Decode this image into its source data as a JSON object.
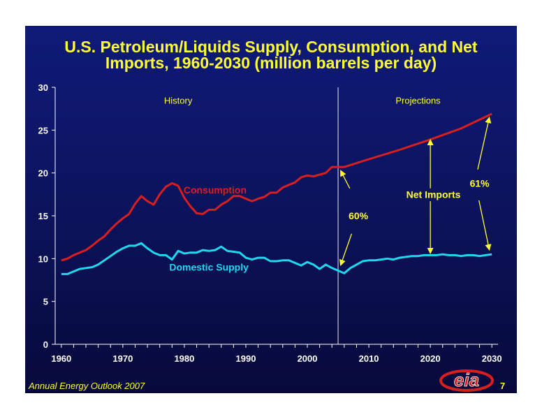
{
  "title_line1": "U.S. Petroleum/Liquids Supply, Consumption, and Net",
  "title_line2": "Imports, 1960-2030 (million barrels per day)",
  "footer": "Annual Energy Outlook 2007",
  "page_number": "7",
  "logo_text": "eia",
  "colors": {
    "title": "#ffff33",
    "consumption": "#d81e1e",
    "domestic": "#1ed8f0",
    "annotation": "#ffff33",
    "axis": "#ffffff"
  },
  "chart_data": {
    "type": "line",
    "xlim": [
      1959,
      2031
    ],
    "ylim": [
      0,
      30
    ],
    "xticks": [
      1960,
      1970,
      1980,
      1990,
      2000,
      2010,
      2020,
      2030
    ],
    "yticks": [
      0,
      5,
      10,
      15,
      20,
      25,
      30
    ],
    "history_boundary": 2005,
    "region_labels": [
      {
        "text": "History",
        "x": 1979,
        "y": 28.5
      },
      {
        "text": "Projections",
        "x": 2018,
        "y": 28.5
      }
    ],
    "series": [
      {
        "name": "Consumption",
        "label_pos": {
          "x": 1985,
          "y": 18
        },
        "points": [
          [
            1960,
            9.8
          ],
          [
            1961,
            10.0
          ],
          [
            1962,
            10.4
          ],
          [
            1963,
            10.7
          ],
          [
            1964,
            11.0
          ],
          [
            1965,
            11.5
          ],
          [
            1966,
            12.1
          ],
          [
            1967,
            12.6
          ],
          [
            1968,
            13.4
          ],
          [
            1969,
            14.1
          ],
          [
            1970,
            14.7
          ],
          [
            1971,
            15.2
          ],
          [
            1972,
            16.4
          ],
          [
            1973,
            17.3
          ],
          [
            1974,
            16.7
          ],
          [
            1975,
            16.3
          ],
          [
            1976,
            17.5
          ],
          [
            1977,
            18.4
          ],
          [
            1978,
            18.8
          ],
          [
            1979,
            18.5
          ],
          [
            1980,
            17.1
          ],
          [
            1981,
            16.1
          ],
          [
            1982,
            15.3
          ],
          [
            1983,
            15.2
          ],
          [
            1984,
            15.7
          ],
          [
            1985,
            15.7
          ],
          [
            1986,
            16.3
          ],
          [
            1987,
            16.7
          ],
          [
            1988,
            17.3
          ],
          [
            1989,
            17.3
          ],
          [
            1990,
            17.0
          ],
          [
            1991,
            16.7
          ],
          [
            1992,
            17.0
          ],
          [
            1993,
            17.2
          ],
          [
            1994,
            17.7
          ],
          [
            1995,
            17.7
          ],
          [
            1996,
            18.3
          ],
          [
            1997,
            18.6
          ],
          [
            1998,
            18.9
          ],
          [
            1999,
            19.5
          ],
          [
            2000,
            19.7
          ],
          [
            2001,
            19.6
          ],
          [
            2002,
            19.8
          ],
          [
            2003,
            20.0
          ],
          [
            2004,
            20.7
          ],
          [
            2005,
            20.7
          ],
          [
            2006,
            20.7
          ],
          [
            2010,
            21.6
          ],
          [
            2015,
            22.7
          ],
          [
            2020,
            23.9
          ],
          [
            2025,
            25.2
          ],
          [
            2030,
            26.9
          ]
        ]
      },
      {
        "name": "Domestic Supply",
        "label_pos": {
          "x": 1984,
          "y": 9
        },
        "points": [
          [
            1960,
            8.2
          ],
          [
            1961,
            8.2
          ],
          [
            1962,
            8.5
          ],
          [
            1963,
            8.8
          ],
          [
            1964,
            8.9
          ],
          [
            1965,
            9.0
          ],
          [
            1966,
            9.3
          ],
          [
            1967,
            9.8
          ],
          [
            1968,
            10.3
          ],
          [
            1969,
            10.8
          ],
          [
            1970,
            11.2
          ],
          [
            1971,
            11.5
          ],
          [
            1972,
            11.5
          ],
          [
            1973,
            11.8
          ],
          [
            1974,
            11.2
          ],
          [
            1975,
            10.7
          ],
          [
            1976,
            10.4
          ],
          [
            1977,
            10.4
          ],
          [
            1978,
            9.9
          ],
          [
            1979,
            10.9
          ],
          [
            1980,
            10.6
          ],
          [
            1981,
            10.7
          ],
          [
            1982,
            10.7
          ],
          [
            1983,
            11.0
          ],
          [
            1984,
            10.9
          ],
          [
            1985,
            11.0
          ],
          [
            1986,
            11.4
          ],
          [
            1987,
            10.9
          ],
          [
            1988,
            10.8
          ],
          [
            1989,
            10.7
          ],
          [
            1990,
            10.1
          ],
          [
            1991,
            9.9
          ],
          [
            1992,
            10.1
          ],
          [
            1993,
            10.1
          ],
          [
            1994,
            9.7
          ],
          [
            1995,
            9.7
          ],
          [
            1996,
            9.8
          ],
          [
            1997,
            9.8
          ],
          [
            1998,
            9.5
          ],
          [
            1999,
            9.2
          ],
          [
            2000,
            9.6
          ],
          [
            2001,
            9.3
          ],
          [
            2002,
            8.8
          ],
          [
            2003,
            9.3
          ],
          [
            2004,
            8.9
          ],
          [
            2005,
            8.6
          ],
          [
            2006,
            8.3
          ],
          [
            2007,
            8.9
          ],
          [
            2008,
            9.3
          ],
          [
            2009,
            9.7
          ],
          [
            2010,
            9.8
          ],
          [
            2011,
            9.8
          ],
          [
            2012,
            9.9
          ],
          [
            2013,
            10.0
          ],
          [
            2014,
            9.9
          ],
          [
            2015,
            10.1
          ],
          [
            2016,
            10.2
          ],
          [
            2017,
            10.3
          ],
          [
            2018,
            10.3
          ],
          [
            2019,
            10.4
          ],
          [
            2020,
            10.4
          ],
          [
            2021,
            10.4
          ],
          [
            2022,
            10.5
          ],
          [
            2023,
            10.4
          ],
          [
            2024,
            10.4
          ],
          [
            2025,
            10.3
          ],
          [
            2026,
            10.4
          ],
          [
            2027,
            10.4
          ],
          [
            2028,
            10.3
          ],
          [
            2029,
            10.4
          ],
          [
            2030,
            10.5
          ]
        ]
      }
    ],
    "annotations": [
      {
        "text": "60%",
        "x": 2008.3,
        "y": 15.0
      },
      {
        "text": "Net Imports",
        "x": 2020.5,
        "y": 17.5
      },
      {
        "text": "61%",
        "x": 2028,
        "y": 18.8
      }
    ],
    "arrows": [
      {
        "from": [
          2006.9,
          18.2
        ],
        "to": [
          2005.4,
          20.3
        ]
      },
      {
        "from": [
          2007.2,
          12.9
        ],
        "to": [
          2005.4,
          9.2
        ]
      },
      {
        "from": [
          2020,
          18.2
        ],
        "to": [
          2020,
          23.9
        ]
      },
      {
        "from": [
          2020,
          16.7
        ],
        "to": [
          2020,
          10.6
        ]
      },
      {
        "from": [
          2027.7,
          20.4
        ],
        "to": [
          2029.6,
          26.5
        ]
      },
      {
        "from": [
          2027.9,
          16.8
        ],
        "to": [
          2029.6,
          11.0
        ]
      }
    ]
  }
}
